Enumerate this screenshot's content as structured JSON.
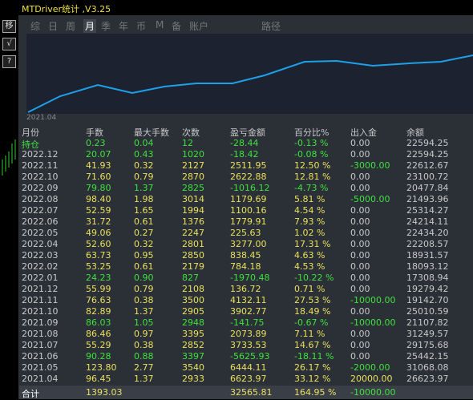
{
  "title": "MTDriver统计 ,V3.25",
  "toolbar": [
    "移",
    "√",
    "?"
  ],
  "tabs": [
    "综",
    "日",
    "周",
    "月",
    "季",
    "年",
    "币",
    "M",
    "备",
    "账户",
    "路径"
  ],
  "selected_tab": "月",
  "chart": {
    "label": "2021.04"
  },
  "table": {
    "columns": [
      "月份",
      "手数",
      "最大手数",
      "次数",
      "盈亏金额",
      "百分比%",
      "出入金",
      "余额"
    ],
    "rows": [
      [
        "持仓",
        "0.23",
        "0.04",
        "12",
        "-28.44",
        "-0.13 %",
        "0.00",
        "22594.25"
      ],
      [
        "2022.12",
        "20.07",
        "0.43",
        "1020",
        "-18.42",
        "-0.08 %",
        "0.00",
        "22594.25"
      ],
      [
        "2022.11",
        "41.93",
        "0.32",
        "2127",
        "2511.95",
        "12.50 %",
        "-3000.00",
        "22612.67"
      ],
      [
        "2022.10",
        "71.60",
        "0.79",
        "2870",
        "2622.88",
        "12.81 %",
        "0.00",
        "23100.72"
      ],
      [
        "2022.09",
        "79.80",
        "1.37",
        "2825",
        "-1016.12",
        "-4.73 %",
        "0.00",
        "20477.84"
      ],
      [
        "2022.08",
        "98.40",
        "1.98",
        "3014",
        "1179.69",
        "5.81 %",
        "-5000.00",
        "21493.96"
      ],
      [
        "2022.07",
        "52.59",
        "1.65",
        "1994",
        "1100.16",
        "4.54 %",
        "0.00",
        "25314.27"
      ],
      [
        "2022.06",
        "31.72",
        "0.61",
        "1376",
        "1779.91",
        "7.93 %",
        "0.00",
        "24214.11"
      ],
      [
        "2022.05",
        "49.06",
        "0.27",
        "2247",
        "225.63",
        "1.02 %",
        "0.00",
        "22434.20"
      ],
      [
        "2022.04",
        "52.60",
        "0.32",
        "2801",
        "3277.00",
        "17.31 %",
        "0.00",
        "22208.57"
      ],
      [
        "2022.03",
        "63.73",
        "0.95",
        "2850",
        "838.45",
        "4.63 %",
        "0.00",
        "18931.57"
      ],
      [
        "2022.02",
        "53.25",
        "0.61",
        "2179",
        "784.18",
        "4.53 %",
        "0.00",
        "18093.12"
      ],
      [
        "2022.01",
        "24.23",
        "0.90",
        "827",
        "-1970.48",
        "-10.22 %",
        "0.00",
        "17308.94"
      ],
      [
        "2021.12",
        "55.99",
        "0.79",
        "2108",
        "136.72",
        "0.71 %",
        "0.00",
        "19279.42"
      ],
      [
        "2021.11",
        "76.63",
        "0.38",
        "3500",
        "4132.11",
        "27.53 %",
        "-10000.00",
        "19142.70"
      ],
      [
        "2021.10",
        "82.89",
        "1.37",
        "2905",
        "3902.77",
        "18.49 %",
        "0.00",
        "25010.59"
      ],
      [
        "2021.09",
        "86.03",
        "1.05",
        "2948",
        "-141.75",
        "-0.67 %",
        "-10000.00",
        "21107.82"
      ],
      [
        "2021.08",
        "86.46",
        "0.97",
        "3395",
        "2073.89",
        "7.11 %",
        "0.00",
        "31249.57"
      ],
      [
        "2021.07",
        "55.29",
        "0.38",
        "2852",
        "3733.53",
        "14.67 %",
        "0.00",
        "29175.68"
      ],
      [
        "2021.06",
        "90.28",
        "0.88",
        "3397",
        "-5625.93",
        "-18.11 %",
        "0.00",
        "25442.15"
      ],
      [
        "2021.05",
        "123.80",
        "2.77",
        "3540",
        "6444.11",
        "26.17 %",
        "-2000.00",
        "31068.08"
      ],
      [
        "2021.04",
        "96.45",
        "1.37",
        "2933",
        "6623.97",
        "33.12 %",
        "20000.00",
        "26623.97"
      ]
    ],
    "total": [
      "合计",
      "1393.03",
      null,
      null,
      "32565.81",
      "164.95 %",
      "-10000.00",
      null
    ]
  }
}
